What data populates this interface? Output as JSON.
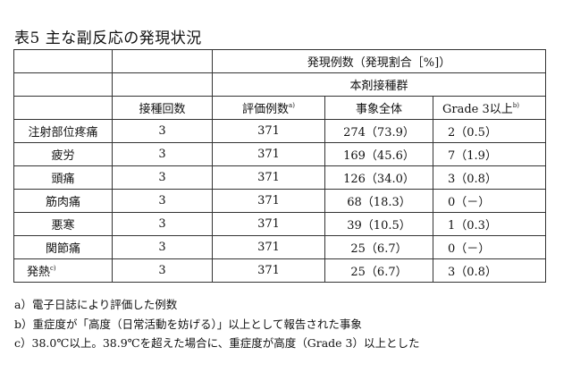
{
  "title": "表5 主な副反応の発現状況",
  "header": {
    "top_group": "発現例数（発現割合［%]）",
    "sub_group": "本剤接種群",
    "col_doses": "接種回数",
    "col_evaluated": "評価例数",
    "col_evaluated_mark": "a)",
    "col_all": "事象全体",
    "col_grade": "Grade 3以上",
    "col_grade_mark": "b)"
  },
  "rows": [
    {
      "event": "注射部位疼痛",
      "mark": "",
      "doses": "3",
      "evaluated": "371",
      "all": "274（73.9）",
      "grade3": "2（0.5）"
    },
    {
      "event": "疲労",
      "mark": "",
      "doses": "3",
      "evaluated": "371",
      "all": "169（45.6）",
      "grade3": "7（1.9）"
    },
    {
      "event": "頭痛",
      "mark": "",
      "doses": "3",
      "evaluated": "371",
      "all": "126（34.0）",
      "grade3": "3（0.8）"
    },
    {
      "event": "筋肉痛",
      "mark": "",
      "doses": "3",
      "evaluated": "371",
      "all": "68（18.3）",
      "grade3": "0（－）"
    },
    {
      "event": "悪寒",
      "mark": "",
      "doses": "3",
      "evaluated": "371",
      "all": "39（10.5）",
      "grade3": "1（0.3）"
    },
    {
      "event": "関節痛",
      "mark": "",
      "doses": "3",
      "evaluated": "371",
      "all": "25（6.7）",
      "grade3": "0（－）"
    },
    {
      "event": "発熱",
      "mark": "c)",
      "doses": "3",
      "evaluated": "371",
      "all": "25（6.7）",
      "grade3": "3（0.8）"
    }
  ],
  "notes": [
    "a）電子日誌により評価した例数",
    "b）重症度が「高度（日常活動を妨げる）」以上として報告された事象",
    "c）38.0℃以上。38.9℃を超えた場合に、重症度が高度（Grade 3）以上とした"
  ]
}
